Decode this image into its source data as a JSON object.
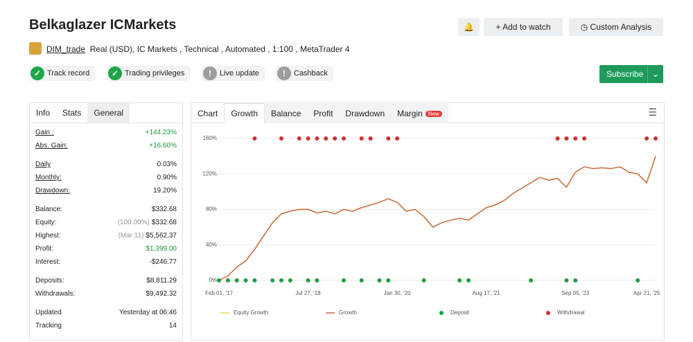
{
  "header": {
    "title": "Belkaglazer ICMarkets",
    "user": "DIM_trade",
    "details": "Real (USD), IC Markets , Technical , Automated , 1:100 , MetaTrader 4"
  },
  "actions": [
    "Add to watch",
    "Custom Analysis"
  ],
  "subscribe": "Subscribe",
  "badges": [
    {
      "label": "Track record",
      "ok": true
    },
    {
      "label": "Trading privileges",
      "ok": true
    },
    {
      "label": "Live update",
      "ok": false
    },
    {
      "label": "Cashback",
      "ok": false
    }
  ],
  "stats": {
    "tabs": [
      "Info",
      "Stats",
      "General"
    ],
    "groups": [
      [
        {
          "label": "Gain :",
          "value": "+144.23%",
          "color": "#1a9a3a"
        },
        {
          "label": "Abs. Gain:",
          "value": "+16.60%",
          "color": "#1a9a3a"
        }
      ],
      [
        {
          "label": "Daily",
          "value": "0.03%"
        },
        {
          "label": "Monthly:",
          "value": "0.90%"
        },
        {
          "label": "Drawdown:",
          "value": "19.20%"
        }
      ],
      [
        {
          "label": "Balance:",
          "value": "$332.68"
        },
        {
          "label": "Equity:",
          "note": "(100.00%)",
          "value": "$332.68"
        },
        {
          "label": "Highest:",
          "note": "(Mar 11)",
          "value": "$5,562.37"
        },
        {
          "label": "Profit:",
          "value": "$1,399.00",
          "color": "#1a9a3a"
        },
        {
          "label": "Interest:",
          "value": "-$246.77"
        }
      ],
      [
        {
          "label": "Deposits:",
          "value": "$8,811.29"
        },
        {
          "label": "Withdrawals:",
          "value": "$9,492.32"
        }
      ],
      [
        {
          "label": "Updated",
          "value": "Yesterday at 06:46"
        },
        {
          "label": "Tracking",
          "value": "14"
        }
      ]
    ]
  },
  "chart_tabs": [
    "Chart",
    "Growth",
    "Balance",
    "Profit",
    "Drawdown",
    "Margin"
  ],
  "new_badge": "New",
  "chart_data": {
    "type": "line",
    "categories": [
      "Feb 01, '17",
      null,
      null,
      null,
      null,
      null,
      null,
      null,
      null,
      null,
      "Jul 27, '18",
      null,
      null,
      null,
      null,
      null,
      null,
      null,
      null,
      null,
      "Jan 30, '20",
      null,
      null,
      null,
      null,
      null,
      null,
      null,
      null,
      null,
      "Aug 17, '21",
      null,
      null,
      null,
      null,
      null,
      null,
      null,
      null,
      null,
      "Sep 05, '23",
      null,
      null,
      null,
      null,
      null,
      null,
      null,
      "Apr 21, '25",
      null
    ],
    "ylim": [
      0,
      160
    ],
    "yticks": [
      {
        "value": 0,
        "label": "0%"
      },
      {
        "value": 40,
        "label": "40%"
      },
      {
        "value": 80,
        "label": "80%"
      },
      {
        "value": 120,
        "label": "120%"
      },
      {
        "value": 160,
        "label": "160%"
      }
    ],
    "grid": true,
    "series": [
      {
        "name": "Equity Growth",
        "color": "#e8d44d",
        "kind": "line",
        "values": [
          0,
          5,
          15,
          22,
          35,
          50,
          65,
          75,
          78,
          80,
          80,
          76,
          78,
          75,
          80,
          78,
          82,
          85,
          88,
          92,
          88,
          78,
          80,
          72,
          60,
          65,
          68,
          70,
          68,
          75,
          82,
          85,
          90,
          98,
          104,
          110,
          116,
          113,
          115,
          105,
          122,
          128,
          126,
          127,
          126,
          128,
          122,
          120,
          110,
          140
        ]
      },
      {
        "name": "Growth",
        "color": "#c8643a",
        "kind": "line",
        "values": [
          0,
          5,
          15,
          22,
          35,
          50,
          65,
          75,
          78,
          80,
          80,
          76,
          78,
          75,
          80,
          78,
          82,
          85,
          88,
          92,
          88,
          78,
          80,
          72,
          60,
          65,
          68,
          70,
          68,
          75,
          82,
          85,
          90,
          98,
          104,
          110,
          116,
          113,
          115,
          105,
          122,
          128,
          126,
          127,
          126,
          128,
          122,
          120,
          110,
          140
        ]
      },
      {
        "name": "Deposit",
        "color": "#1f9d3f",
        "kind": "dot",
        "values": [
          0,
          0,
          0,
          0,
          0,
          null,
          0,
          0,
          0,
          null,
          0,
          0,
          null,
          null,
          0,
          null,
          0,
          null,
          0,
          0,
          null,
          null,
          null,
          0,
          null,
          null,
          null,
          0,
          0,
          null,
          null,
          null,
          null,
          null,
          null,
          0,
          null,
          null,
          null,
          0,
          0,
          null,
          null,
          null,
          null,
          null,
          null,
          0,
          null,
          null
        ]
      },
      {
        "name": "Withdrawal",
        "color": "#d32f2f",
        "kind": "dot",
        "values": [
          null,
          null,
          null,
          null,
          160,
          null,
          null,
          160,
          null,
          160,
          160,
          160,
          160,
          160,
          160,
          null,
          160,
          160,
          null,
          160,
          160,
          null,
          null,
          null,
          null,
          null,
          null,
          null,
          null,
          null,
          null,
          null,
          null,
          null,
          null,
          null,
          null,
          null,
          160,
          160,
          160,
          160,
          null,
          null,
          null,
          null,
          null,
          null,
          160,
          160
        ]
      }
    ]
  }
}
